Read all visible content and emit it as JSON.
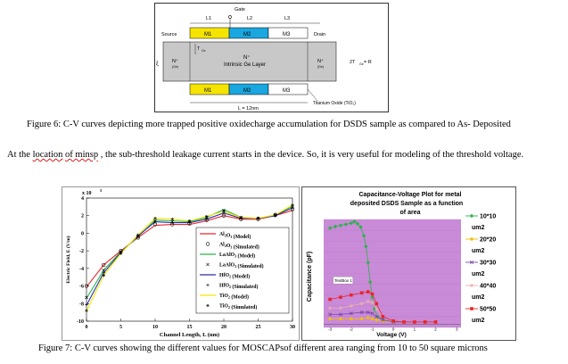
{
  "figure6": {
    "labels": {
      "gate": "Gate",
      "source": "Source",
      "drain": "Drain",
      "l1": "L1",
      "l2": "L2",
      "l3": "L3",
      "m1": "M1",
      "m2": "M2",
      "m3": "M3",
      "n_plus": "N⁺",
      "tox": "T",
      "tox_sub": "Ox",
      "n_plus_left": "N⁺",
      "n_plus_left_sub": "(Ge)",
      "n_plus_right": "N⁺",
      "n_plus_right_sub": "(Ge)",
      "xi": "ξ",
      "channel_label": "Intrinsic Ge Layer",
      "thickness": "2T",
      "thickness_sub": "Ge",
      "thickness_tail": " = R",
      "length": "L = 12nm",
      "oxide": "Titanium Oxide (TiO₂)"
    },
    "colors": {
      "m1": "#f5e400",
      "m2": "#1aa6de",
      "m3": "#ffffff",
      "channel": "#c8c8c8"
    },
    "caption": "Figure 6: C-V curves depicting more trapped positive oxidecharge accumulation for DSDS sample as compared to As- Deposited"
  },
  "paragraph": {
    "part1": "At the ",
    "underlined1": "location",
    "part2": "  ",
    "underlined2": "of minsp",
    "part3": "   ,   the  sub-threshold  leakage current starts in the device. So, it is very useful for modeling of the threshold voltage."
  },
  "chart_left": {
    "y_exp": "x 10",
    "y_exp_sup": "5",
    "ylabel": "Electric Field, E (V/m)",
    "xlabel": "Channel Length, L (nm)",
    "legend": [
      {
        "text": "Al",
        "sub": "2",
        "mid": "O",
        "sub2": "3",
        "tail": " (Model)",
        "color": "#e8262b",
        "kind": "line"
      },
      {
        "text": "Al",
        "sub": "2",
        "mid": "O",
        "sub2": "3",
        "tail": " (Simulated)",
        "color": "#000000",
        "kind": "circle"
      },
      {
        "text": "LaAlO",
        "sub": "3",
        "mid": "",
        "sub2": "",
        "tail": " (Model)",
        "color": "#2bb34a",
        "kind": "line"
      },
      {
        "text": "LaAlO",
        "sub": "3",
        "mid": "",
        "sub2": "",
        "tail": " (Simulated)",
        "color": "#000000",
        "kind": "x"
      },
      {
        "text": "HfO",
        "sub": "2",
        "mid": "",
        "sub2": "",
        "tail": " (Model)",
        "color": "#2b2fa8",
        "kind": "line"
      },
      {
        "text": "HfO",
        "sub": "2",
        "mid": "",
        "sub2": "",
        "tail": " (Simulated)",
        "color": "#000000",
        "kind": "plus"
      },
      {
        "text": "TiO",
        "sub": "2",
        "mid": "",
        "sub2": "",
        "tail": " (Model)",
        "color": "#f2e600",
        "kind": "line"
      },
      {
        "text": "TiO",
        "sub": "2",
        "mid": "",
        "sub2": "",
        "tail": " (Simulated)",
        "color": "#000000",
        "kind": "star"
      }
    ]
  },
  "chart_right": {
    "title_line1": "Capacitance-Voltage Plot for metal",
    "title_line2": "deposited DSDS Sample as a function",
    "title_line3": "of area",
    "ylabel": "Capacitance (pF)",
    "xlabel": "Voltage (V)",
    "textbox": "TextBox 1",
    "legend": [
      {
        "label": "10*10",
        "unit": "um2",
        "color": "#2bb34a",
        "marker": "diamond"
      },
      {
        "label": "20*20",
        "unit": "um2",
        "color": "#f0c000",
        "marker": "circle"
      },
      {
        "label": "30*30",
        "unit": "um2",
        "color": "#7a4aa8",
        "marker": "x"
      },
      {
        "label": "40*40",
        "unit": "um2",
        "color": "#e8b0b0",
        "marker": "star"
      },
      {
        "label": "50*50",
        "unit": "um2",
        "color": "#e8262b",
        "marker": "square"
      }
    ],
    "background": "#c98ad8"
  },
  "caption7": "Figure 7: C-V curves showing the different values for MOSCAPsof different area ranging from 10 to 50 square microns",
  "chart_data": [
    {
      "type": "line",
      "title": "",
      "xlabel": "Channel Length, L (nm)",
      "ylabel": "Electric Field, E (V/m)",
      "y_multiplier": "x 10^5",
      "xlim": [
        0,
        30
      ],
      "ylim": [
        -10,
        4
      ],
      "x_ticks": [
        0,
        5,
        10,
        15,
        20,
        25,
        30
      ],
      "y_ticks": [
        -10,
        -8,
        -6,
        -4,
        -2,
        0,
        2,
        4
      ],
      "series": [
        {
          "name": "Al2O3 (Model)",
          "color": "#e8262b",
          "x": [
            0,
            2.5,
            5,
            7.5,
            10,
            12.5,
            15,
            17.5,
            20,
            22.5,
            25,
            27.5,
            30
          ],
          "y": [
            -6.1,
            -3.6,
            -2.0,
            -0.5,
            0.9,
            1.0,
            1.0,
            1.4,
            2.0,
            1.6,
            1.6,
            2.0,
            2.6
          ]
        },
        {
          "name": "LaAlO3 (Model)",
          "color": "#2bb34a",
          "x": [
            0,
            2.5,
            5,
            7.5,
            10,
            12.5,
            15,
            17.5,
            20,
            22.5,
            25,
            27.5,
            30
          ],
          "y": [
            -7.4,
            -4.2,
            -2.1,
            -0.4,
            1.5,
            1.4,
            1.3,
            1.8,
            2.7,
            1.8,
            1.7,
            2.0,
            3.1
          ]
        },
        {
          "name": "HfO2 (Model)",
          "color": "#2b2fa8",
          "x": [
            0,
            2.5,
            5,
            7.5,
            10,
            12.5,
            15,
            17.5,
            20,
            22.5,
            25,
            27.5,
            30
          ],
          "y": [
            -8.2,
            -4.5,
            -2.2,
            -0.3,
            1.3,
            1.2,
            1.2,
            1.6,
            2.3,
            1.7,
            1.7,
            2.0,
            2.9
          ]
        },
        {
          "name": "TiO2 (Model)",
          "color": "#f2e600",
          "x": [
            0,
            2.5,
            5,
            7.5,
            10,
            12.5,
            15,
            17.5,
            20,
            22.5,
            25,
            27.5,
            30
          ],
          "y": [
            -8.9,
            -4.8,
            -2.3,
            -0.2,
            1.7,
            1.6,
            1.4,
            1.9,
            2.5,
            1.8,
            1.7,
            2.1,
            3.2
          ]
        }
      ],
      "markers": [
        {
          "name": "Al2O3 (Simulated)",
          "kind": "circle",
          "x": [
            0,
            2.5,
            5,
            7.5,
            10,
            12.5,
            15,
            17.5,
            20,
            22.5,
            25,
            27.5,
            30
          ],
          "y": [
            -6.0,
            -3.6,
            -2.0,
            -0.5,
            1.0,
            1.0,
            1.1,
            1.5,
            2.0,
            1.6,
            1.6,
            2.1,
            2.7
          ]
        },
        {
          "name": "LaAlO3 (Simulated)",
          "kind": "x",
          "x": [
            0,
            2.5,
            5,
            7.5,
            10,
            12.5,
            15,
            17.5,
            20,
            22.5,
            25,
            27.5,
            30
          ],
          "y": [
            -7.3,
            -4.2,
            -2.1,
            -0.4,
            1.4,
            1.3,
            1.3,
            1.8,
            2.6,
            1.8,
            1.7,
            2.0,
            3.0
          ]
        },
        {
          "name": "HfO2 (Simulated)",
          "kind": "plus",
          "x": [
            0,
            2.5,
            5,
            7.5,
            10,
            12.5,
            15,
            17.5,
            20,
            22.5,
            25,
            27.5,
            30
          ],
          "y": [
            -8.1,
            -4.5,
            -2.2,
            -0.3,
            1.3,
            1.2,
            1.2,
            1.6,
            2.3,
            1.7,
            1.7,
            2.0,
            2.9
          ]
        },
        {
          "name": "TiO2 (Simulated)",
          "kind": "star",
          "x": [
            0,
            2.5,
            5,
            7.5,
            10,
            12.5,
            15,
            17.5,
            20,
            22.5,
            25,
            27.5,
            30
          ],
          "y": [
            -8.8,
            -4.8,
            -2.3,
            -0.2,
            1.7,
            1.6,
            1.4,
            1.9,
            2.5,
            1.8,
            1.7,
            2.1,
            3.2
          ]
        }
      ]
    },
    {
      "type": "scatter",
      "title": "Capacitance-Voltage Plot for metal deposited DSDS Sample as a function of area",
      "xlabel": "Voltage (V)",
      "ylabel": "Capacitance (pF)",
      "xlim": [
        -3.3,
        3.2
      ],
      "ylim": [
        0,
        1
      ],
      "x_ticks": [
        -3,
        -2,
        -1,
        0,
        1,
        2,
        3
      ],
      "series": [
        {
          "name": "10*10 um2",
          "color": "#2bb34a",
          "x": [
            -3.0,
            -2.75,
            -2.5,
            -2.25,
            -2.0,
            -1.85,
            -1.7,
            -1.55,
            -1.4,
            -1.3,
            -1.2,
            -1.1,
            -1.0,
            -0.9,
            -0.75,
            -0.5,
            0,
            0.5,
            1.0,
            1.5,
            2.0
          ],
          "y": [
            0.92,
            0.935,
            0.945,
            0.955,
            0.965,
            0.98,
            0.96,
            0.93,
            0.85,
            0.75,
            0.6,
            0.42,
            0.28,
            0.17,
            0.1,
            0.07,
            0.05,
            0.05,
            0.05,
            0.05,
            0.05
          ]
        },
        {
          "name": "20*20 um2",
          "color": "#f0c000",
          "x": [
            -3.0,
            -2.5,
            -2.0,
            -1.5,
            -1.2,
            -1.0,
            -0.8,
            -0.5,
            0,
            0.5,
            1.0,
            1.5,
            2.0
          ],
          "y": [
            0.08,
            0.08,
            0.08,
            0.08,
            0.09,
            0.08,
            0.07,
            0.06,
            0.05,
            0.05,
            0.05,
            0.05,
            0.05
          ]
        },
        {
          "name": "30*30 um2",
          "color": "#7a4aa8",
          "x": [
            -3.0,
            -2.5,
            -2.0,
            -1.5,
            -1.2,
            -1.0,
            -0.8,
            -0.5,
            0,
            0.5,
            1.0,
            1.5,
            2.0
          ],
          "y": [
            0.12,
            0.12,
            0.13,
            0.14,
            0.14,
            0.13,
            0.1,
            0.07,
            0.05,
            0.05,
            0.05,
            0.05,
            0.05
          ]
        },
        {
          "name": "40*40 um2",
          "color": "#e8b0b0",
          "x": [
            -3.0,
            -2.5,
            -2.0,
            -1.5,
            -1.2,
            -1.0,
            -0.8,
            -0.5,
            0,
            0.5,
            1.0,
            1.5,
            2.0
          ],
          "y": [
            0.18,
            0.18,
            0.2,
            0.22,
            0.24,
            0.23,
            0.17,
            0.1,
            0.06,
            0.05,
            0.05,
            0.05,
            0.05
          ]
        },
        {
          "name": "50*50 um2",
          "color": "#e8262b",
          "x": [
            -3.0,
            -2.5,
            -2.0,
            -1.5,
            -1.2,
            -1.0,
            -0.8,
            -0.5,
            0,
            0.5,
            1.0,
            1.5,
            2.0
          ],
          "y": [
            0.26,
            0.28,
            0.3,
            0.32,
            0.33,
            0.31,
            0.22,
            0.1,
            0.06,
            0.05,
            0.05,
            0.05,
            0.05
          ]
        }
      ]
    }
  ]
}
